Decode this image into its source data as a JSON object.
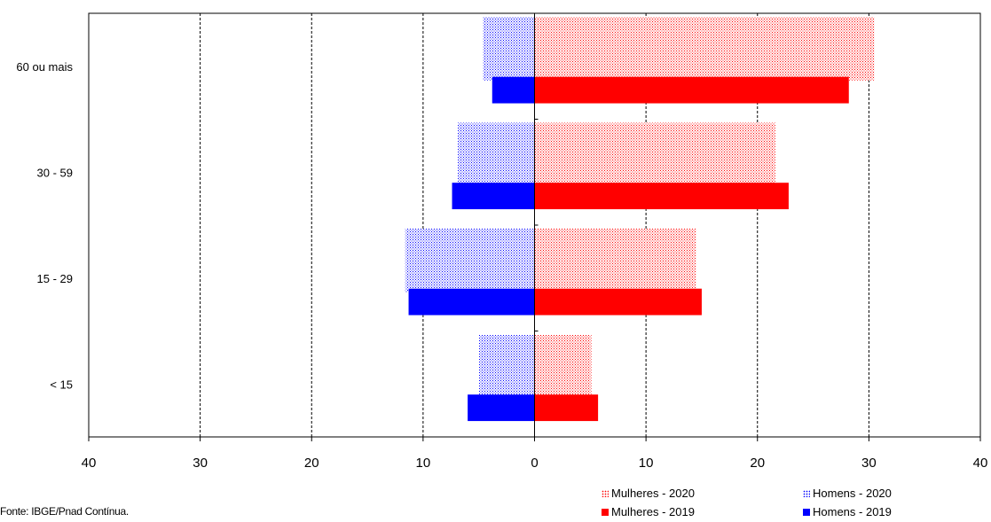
{
  "chart_data": {
    "type": "bar",
    "orientation": "horizontal",
    "layout": "population-pyramid",
    "categories": [
      "60 ou mais",
      "30 - 59",
      "15 - 29",
      "< 15"
    ],
    "series": [
      {
        "name": "Mulheres - 2020",
        "side": "right",
        "pattern": "dotted",
        "color": "#ff0000",
        "values": [
          30.5,
          21.6,
          14.5,
          5.1
        ]
      },
      {
        "name": "Homens - 2020",
        "side": "left",
        "pattern": "dotted",
        "color": "#0000ff",
        "values": [
          4.6,
          6.9,
          11.6,
          5.0
        ]
      },
      {
        "name": "Mulheres - 2019",
        "side": "right",
        "pattern": "solid",
        "color": "#ff0000",
        "values": [
          28.2,
          22.8,
          15.0,
          5.7
        ]
      },
      {
        "name": "Homens - 2019",
        "side": "left",
        "pattern": "solid",
        "color": "#0000ff",
        "values": [
          3.8,
          7.4,
          11.3,
          6.0
        ]
      }
    ],
    "xlim": [
      -40,
      40
    ],
    "ticks": [
      {
        "value": -40,
        "label": "40"
      },
      {
        "value": -30,
        "label": "30"
      },
      {
        "value": -20,
        "label": "20"
      },
      {
        "value": -10,
        "label": "10"
      },
      {
        "value": 0,
        "label": "0"
      },
      {
        "value": 10,
        "label": "10"
      },
      {
        "value": 20,
        "label": "20"
      },
      {
        "value": 30,
        "label": "30"
      },
      {
        "value": 40,
        "label": "40"
      }
    ],
    "grid": "vertical dashed",
    "legend_position": "bottom-right"
  },
  "source": "Fonte: IBGE/Pnad Contínua."
}
